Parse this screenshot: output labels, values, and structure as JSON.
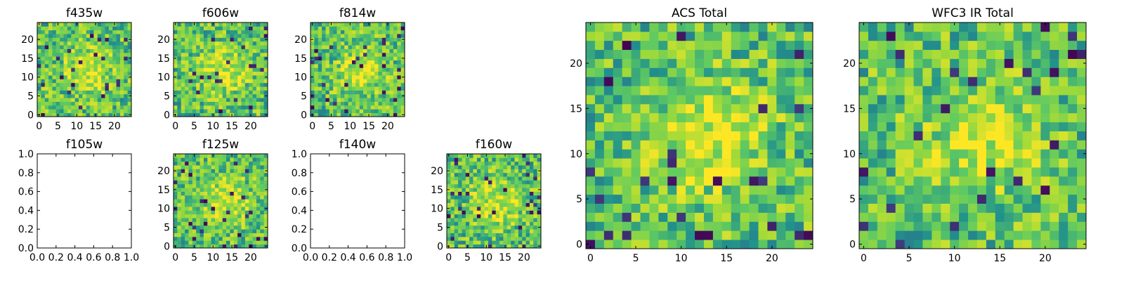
{
  "chart_data": [
    {
      "type": "heatmap",
      "title": "f435w",
      "grid": 25,
      "empty": false,
      "xticks": [
        "0",
        "5",
        "10",
        "15",
        "20"
      ],
      "yticks": [
        "0",
        "5",
        "10",
        "15",
        "20"
      ]
    },
    {
      "type": "heatmap",
      "title": "f606w",
      "grid": 25,
      "empty": false,
      "xticks": [
        "0",
        "5",
        "10",
        "15",
        "20"
      ],
      "yticks": [
        "0",
        "5",
        "10",
        "15",
        "20"
      ]
    },
    {
      "type": "heatmap",
      "title": "f814w",
      "grid": 25,
      "empty": false,
      "xticks": [
        "0",
        "5",
        "10",
        "15",
        "20"
      ],
      "yticks": [
        "0",
        "5",
        "10",
        "15",
        "20"
      ]
    },
    {
      "type": "heatmap",
      "title": "f105w",
      "empty": true,
      "xlim": [
        0,
        1
      ],
      "ylim": [
        0,
        1
      ],
      "xticks": [
        "0.0",
        "0.2",
        "0.4",
        "0.6",
        "0.8",
        "1.0"
      ],
      "yticks": [
        "0.0",
        "0.2",
        "0.4",
        "0.6",
        "0.8",
        "1.0"
      ]
    },
    {
      "type": "heatmap",
      "title": "f125w",
      "grid": 25,
      "empty": false,
      "xticks": [
        "0",
        "5",
        "10",
        "15",
        "20"
      ],
      "yticks": [
        "0",
        "5",
        "10",
        "15",
        "20"
      ]
    },
    {
      "type": "heatmap",
      "title": "f140w",
      "empty": true,
      "xlim": [
        0,
        1
      ],
      "ylim": [
        0,
        1
      ],
      "xticks": [
        "0.0",
        "0.2",
        "0.4",
        "0.6",
        "0.8",
        "1.0"
      ],
      "yticks": [
        "0.0",
        "0.2",
        "0.4",
        "0.6",
        "0.8",
        "1.0"
      ]
    },
    {
      "type": "heatmap",
      "title": "f160w",
      "grid": 25,
      "empty": false,
      "xticks": [
        "0",
        "5",
        "10",
        "15",
        "20"
      ],
      "yticks": [
        "0",
        "5",
        "10",
        "15",
        "20"
      ]
    },
    {
      "type": "heatmap",
      "title": "ACS Total",
      "grid": 25,
      "empty": false,
      "xticks": [
        "0",
        "5",
        "10",
        "15",
        "20"
      ],
      "yticks": [
        "0",
        "5",
        "10",
        "15",
        "20"
      ]
    },
    {
      "type": "heatmap",
      "title": "WFC3 IR Total",
      "grid": 25,
      "empty": false,
      "xticks": [
        "0",
        "5",
        "10",
        "15",
        "20"
      ],
      "yticks": [
        "0",
        "5",
        "10",
        "15",
        "20"
      ]
    }
  ],
  "colormap": [
    "#440154",
    "#3b528b",
    "#21918c",
    "#5ec962",
    "#a0da39",
    "#fde725"
  ]
}
